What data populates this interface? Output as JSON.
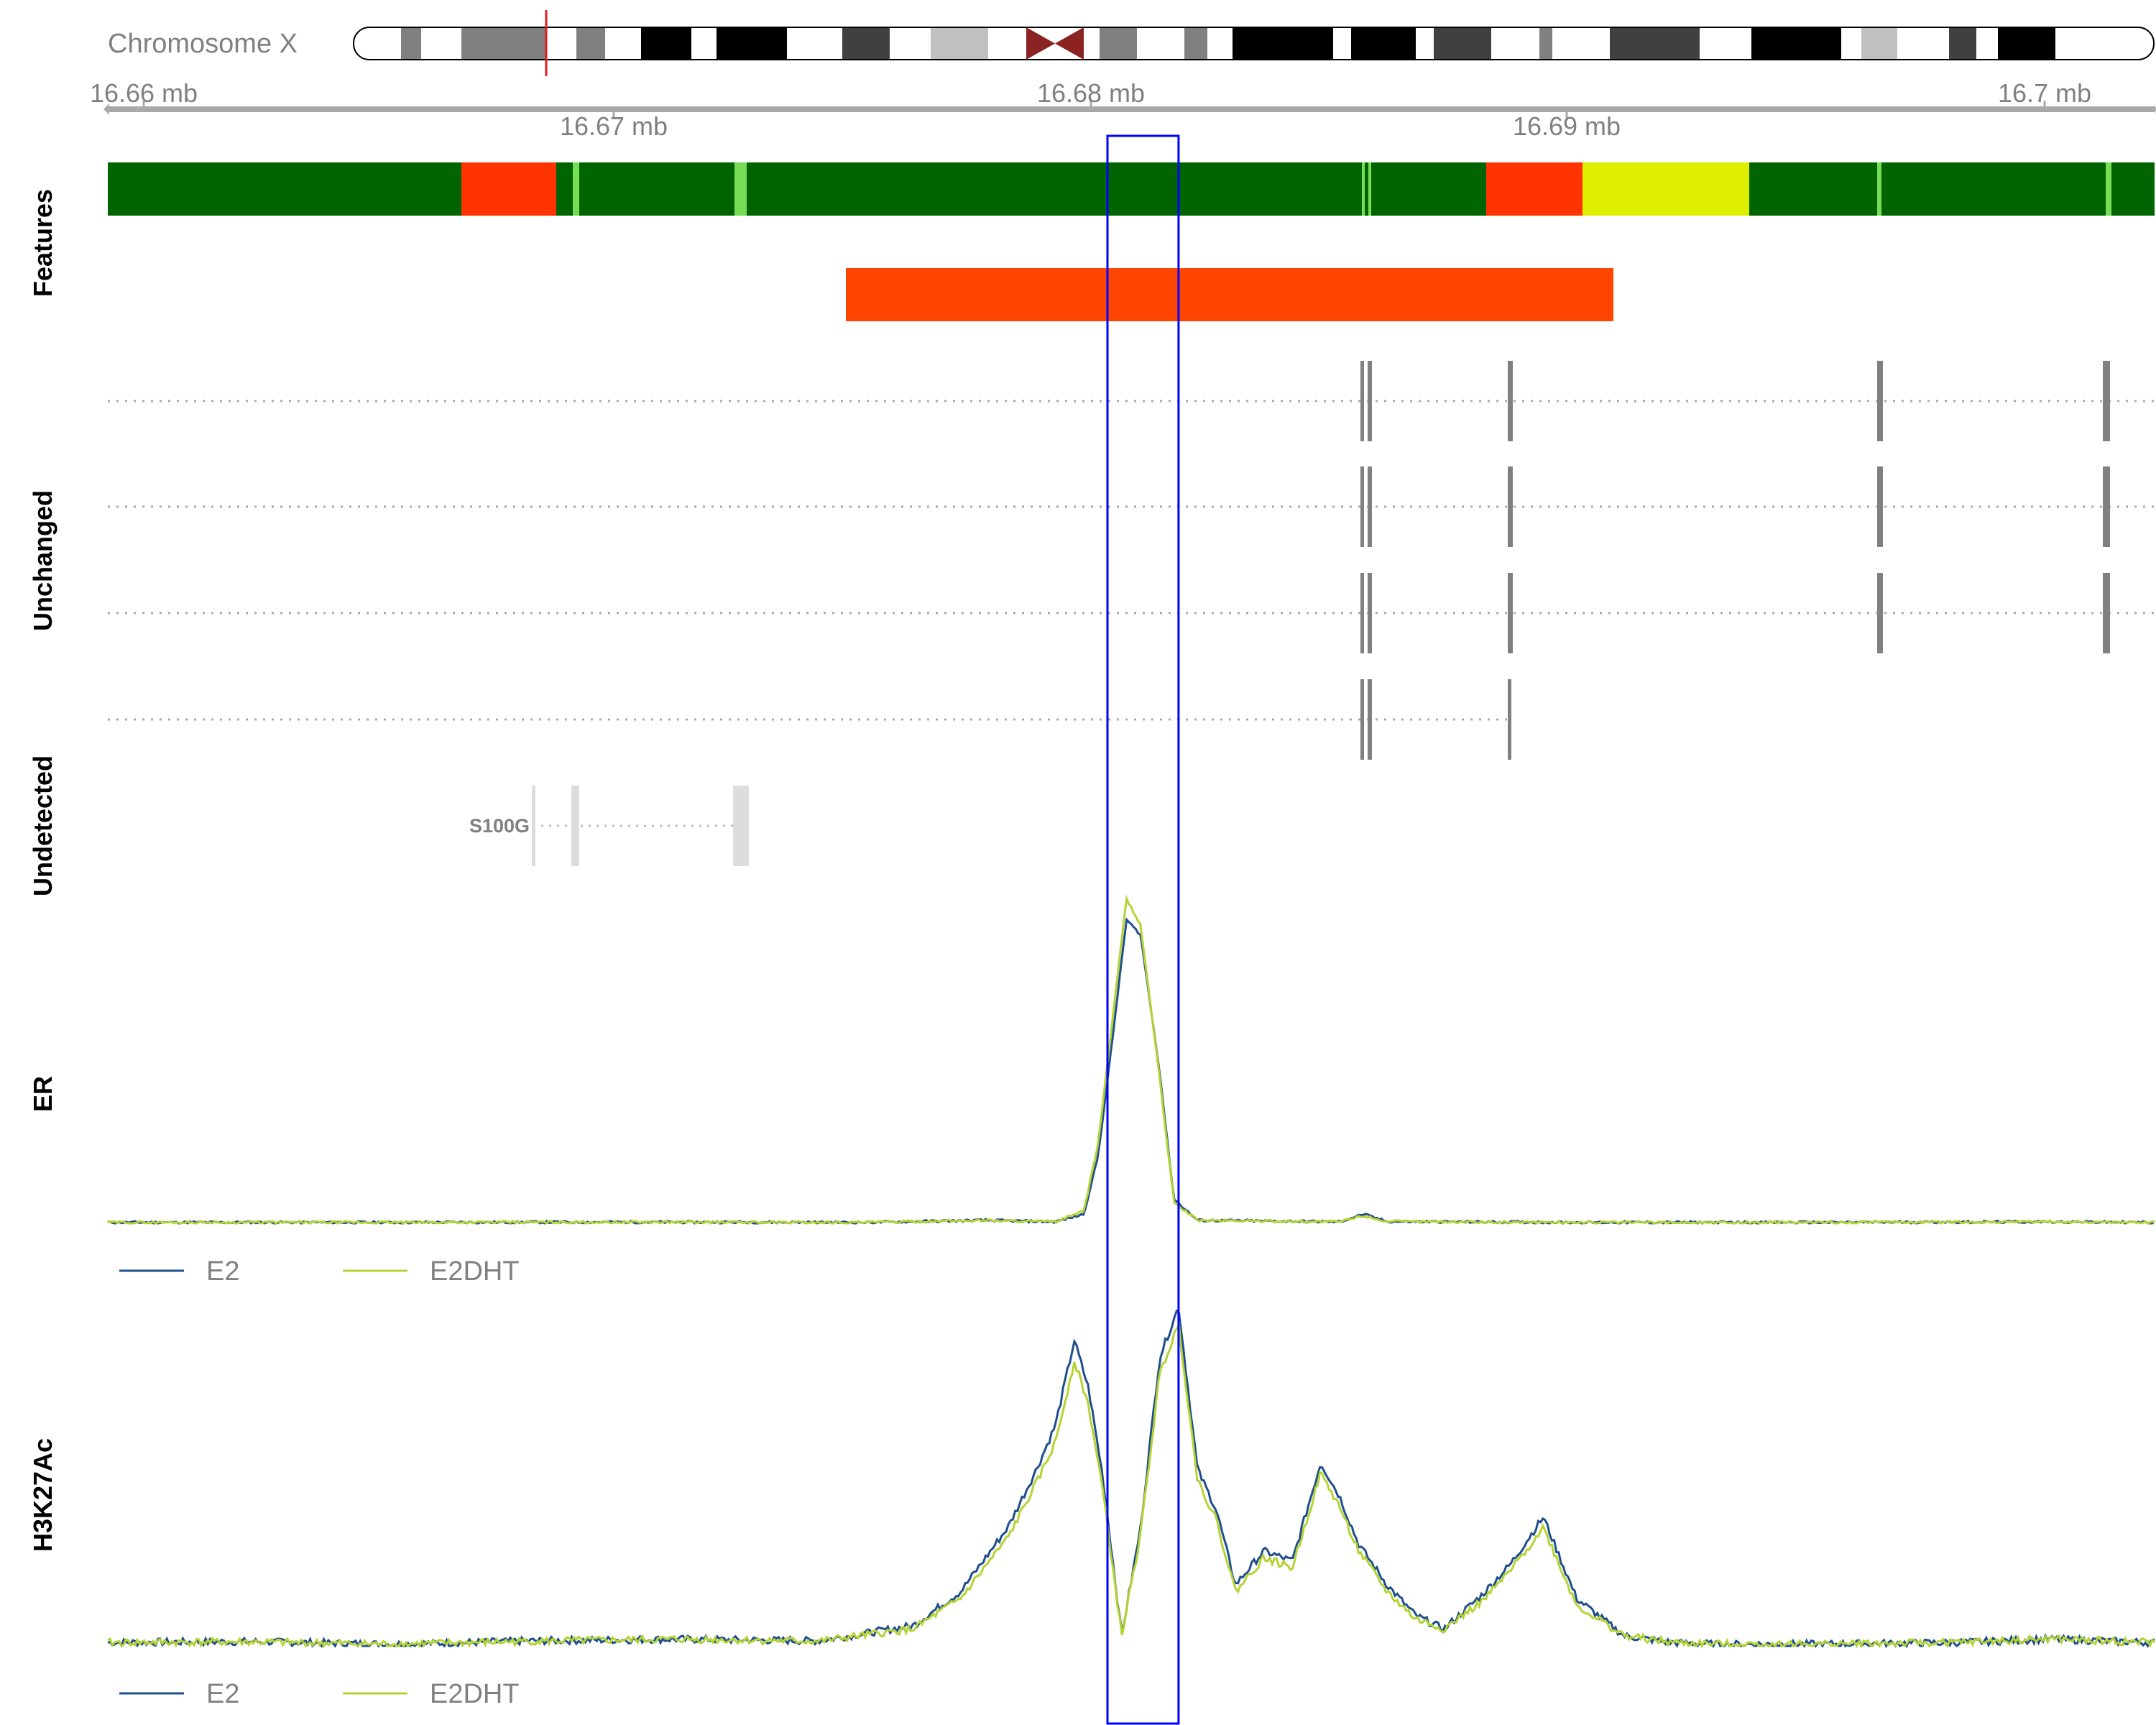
{
  "ideogram": {
    "label": "Chromosome X",
    "centromere_color": "#8B2323",
    "highlight_color": "#E41A1C"
  },
  "axis": {
    "top_ticks": [
      "16.66 mb",
      "16.68 mb",
      "16.7 mb"
    ],
    "bottom_ticks": [
      "16.67 mb",
      "16.69 mb"
    ]
  },
  "tracks": {
    "features_label": "Features",
    "unchanged_label": "Unchanged",
    "undetected_label": "Undetected",
    "er_label": "ER",
    "h3k27ac_label": "H3K27Ac"
  },
  "gene": {
    "label": "S100G"
  },
  "colors": {
    "feature_dark_green": "#006400",
    "feature_light_green": "#77DD55",
    "feature_red": "#FF3300",
    "feature_yellow": "#DDEE00",
    "region_orange": "#FF4500",
    "transcript_gray": "#808080",
    "undetected_gray": "#DDDDDD",
    "highlight_box": "#0000FF",
    "series_e2": "#1F4E8C",
    "series_e2dht": "#B5D334"
  },
  "legends": {
    "er": [
      {
        "name": "E2"
      },
      {
        "name": "E2DHT"
      }
    ],
    "h3k27ac": [
      {
        "name": "E2"
      },
      {
        "name": "E2DHT"
      }
    ]
  },
  "chart_data": [
    {
      "type": "line",
      "track": "ER",
      "x_unit": "mb",
      "xlim": [
        16.659,
        16.7022
      ],
      "highlight": [
        16.6801,
        16.6816
      ],
      "series": [
        {
          "name": "E2",
          "x": [
            16.659,
            16.665,
            16.67,
            16.675,
            16.6775,
            16.679,
            16.6796,
            16.6799,
            16.6802,
            16.6805,
            16.6808,
            16.6812,
            16.6815,
            16.682,
            16.685,
            16.6855,
            16.686,
            16.69,
            16.695,
            16.7,
            16.7022
          ],
          "y": [
            0.3,
            0.3,
            0.4,
            0.3,
            1.0,
            0.5,
            3,
            22,
            60,
            100,
            95,
            50,
            8,
            1,
            0.5,
            3,
            0.6,
            0.3,
            0.3,
            0.5,
            0.3
          ]
        },
        {
          "name": "E2DHT",
          "x": [
            16.659,
            16.665,
            16.67,
            16.675,
            16.6775,
            16.679,
            16.6796,
            16.6799,
            16.6802,
            16.6805,
            16.6808,
            16.6812,
            16.6815,
            16.682,
            16.685,
            16.6855,
            16.686,
            16.69,
            16.695,
            16.7,
            16.7022
          ],
          "y": [
            0.3,
            0.3,
            0.4,
            0.3,
            1.0,
            0.5,
            4,
            26,
            66,
            107,
            98,
            48,
            7,
            1,
            0.5,
            2.5,
            0.6,
            0.3,
            0.3,
            0.5,
            0.3
          ]
        }
      ]
    },
    {
      "type": "line",
      "track": "H3K27Ac",
      "x_unit": "mb",
      "xlim": [
        16.659,
        16.7022
      ],
      "highlight": [
        16.6801,
        16.6816
      ],
      "series": [
        {
          "name": "E2",
          "x": [
            16.659,
            16.662,
            16.665,
            16.668,
            16.671,
            16.674,
            16.676,
            16.677,
            16.678,
            16.6786,
            16.679,
            16.6794,
            16.6797,
            16.68,
            16.6804,
            16.6808,
            16.6812,
            16.6816,
            16.682,
            16.6824,
            16.6828,
            16.6834,
            16.684,
            16.6846,
            16.685,
            16.6854,
            16.686,
            16.6866,
            16.6872,
            16.688,
            16.6886,
            16.6893,
            16.69,
            16.691,
            16.692,
            16.693,
            16.695,
            16.698,
            16.7,
            16.7022
          ],
          "y": [
            1,
            1.3,
            0.5,
            1.5,
            2,
            1.5,
            6,
            16,
            35,
            52,
            65,
            90,
            76,
            50,
            3,
            35,
            85,
            100,
            52,
            40,
            18,
            28,
            25,
            54,
            44,
            30,
            18,
            9,
            5,
            15,
            24,
            38,
            14,
            3,
            1,
            0.5,
            0.5,
            1,
            2,
            1
          ]
        },
        {
          "name": "E2DHT",
          "x": [
            16.659,
            16.662,
            16.665,
            16.668,
            16.671,
            16.674,
            16.676,
            16.677,
            16.678,
            16.6786,
            16.679,
            16.6794,
            16.6797,
            16.68,
            16.6804,
            16.6808,
            16.6812,
            16.6816,
            16.682,
            16.6824,
            16.6828,
            16.6834,
            16.684,
            16.6846,
            16.685,
            16.6854,
            16.686,
            16.6866,
            16.6872,
            16.688,
            16.6886,
            16.6893,
            16.69,
            16.691,
            16.692,
            16.693,
            16.695,
            16.698,
            16.7,
            16.7022
          ],
          "y": [
            1,
            1.2,
            0.5,
            1.4,
            2,
            1.4,
            5,
            14,
            32,
            48,
            60,
            84,
            71,
            46,
            3,
            33,
            80,
            95,
            49,
            37,
            16,
            26,
            23,
            51,
            41,
            28,
            16,
            8,
            5,
            13,
            22,
            35,
            12,
            3,
            1,
            0.5,
            0.5,
            1,
            2,
            1
          ]
        }
      ]
    }
  ]
}
